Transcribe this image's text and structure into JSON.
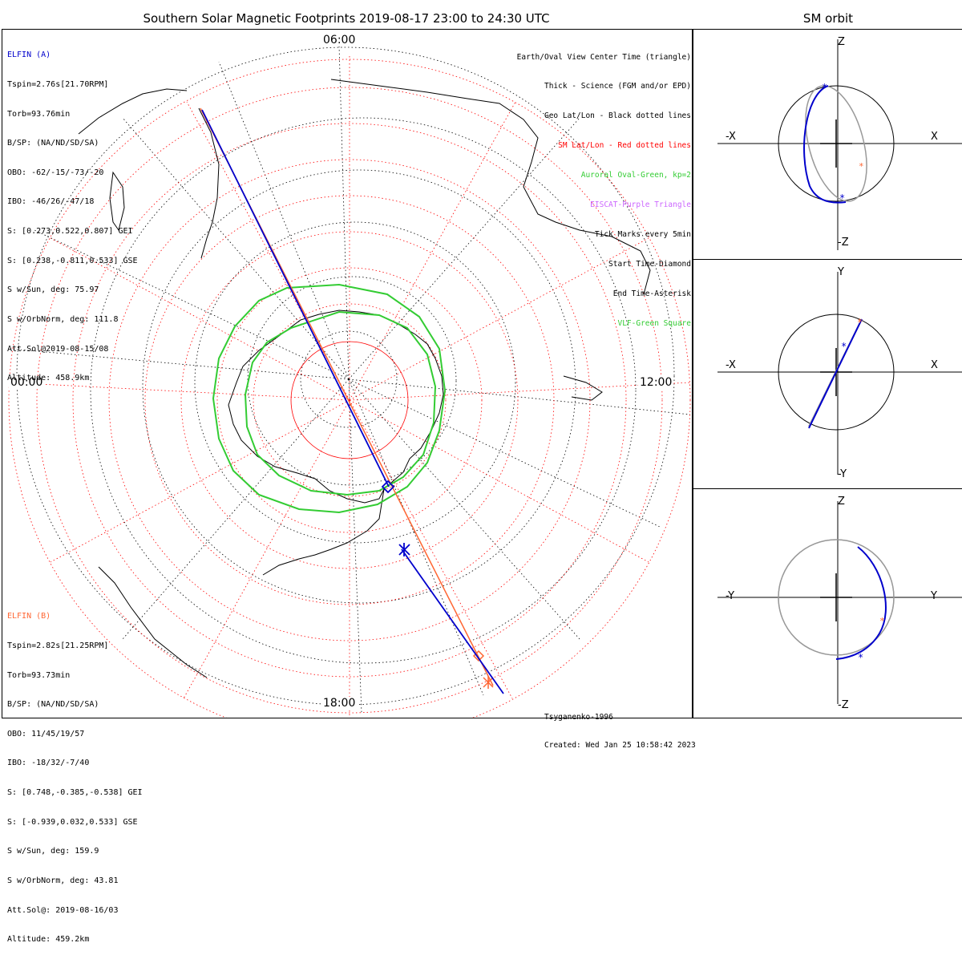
{
  "title": "Southern Solar Magnetic Footprints 2019-08-17 23:00 to 24:30 UTC",
  "orbit_title": "SM orbit",
  "mlt_labels": {
    "top": "06:00",
    "left": "00:00",
    "right": "12:00",
    "bottom": "18:00"
  },
  "elfin_a": {
    "name": "ELFIN (A)",
    "color": "#0000cc",
    "lines": [
      "Tspin=2.76s[21.70RPM]",
      "Torb=93.76min",
      "B/SP: (NA/ND/SD/SA)",
      "OBO: -62/-15/-73/-20",
      "IBO: -46/26/-47/18",
      "S: [0.273,0.522,0.807] GEI",
      "S: [0.238,-0.811,0.533] GSE",
      "S w/Sun, deg: 75.97",
      "S w/OrbNorm, deg: 111.8",
      "Att.Sol@2019-08-15/08",
      "Altitude: 458.9km"
    ]
  },
  "elfin_b": {
    "name": "ELFIN (B)",
    "color": "#ff6633",
    "lines": [
      "Tspin=2.82s[21.25RPM]",
      "Torb=93.73min",
      "B/SP: (NA/ND/SD/SA)",
      "OBO: 11/45/19/57",
      "IBO: -18/32/-7/40",
      "S: [0.748,-0.385,-0.538] GEI",
      "S: [-0.939,0.032,0.533] GSE",
      "S w/Sun, deg: 159.9",
      "S w/OrbNorm, deg: 43.81",
      "Att.Sol@: 2019-08-16/03",
      "Altitude: 459.2km"
    ]
  },
  "legend": [
    {
      "text": "Earth/Oval View Center Time (triangle)",
      "color": "#000000"
    },
    {
      "text": "Thick - Science (FGM and/or EPD)",
      "color": "#000000"
    },
    {
      "text": "Geo Lat/Lon - Black dotted lines",
      "color": "#000000"
    },
    {
      "text": "SM Lat/Lon - Red dotted lines",
      "color": "#ff0000"
    },
    {
      "text": "Auroral Oval-Green, kp=2",
      "color": "#33cc33"
    },
    {
      "text": "EISCAT-Purple Triangle",
      "color": "#cc66ff"
    },
    {
      "text": "Tick Marks every 5min",
      "color": "#000000"
    },
    {
      "text": "Start Time-Diamond",
      "color": "#000000"
    },
    {
      "text": "End Time-Asterisk",
      "color": "#000000"
    },
    {
      "text": "VLF-Green Square",
      "color": "#33cc33"
    }
  ],
  "credits": [
    "Tsyganenko-1996",
    "Created: Wed Jan 25 10:58:42 2023"
  ],
  "orbit_panels": [
    {
      "top": "Z",
      "bottom": "-Z",
      "left": "-X",
      "right": "X"
    },
    {
      "top": "Y",
      "bottom": "-Y",
      "left": "-X",
      "right": "X"
    },
    {
      "top": "Z",
      "bottom": "-Z",
      "left": "-Y",
      "right": "Y"
    }
  ],
  "colors": {
    "trace_a": "#0000cc",
    "trace_b": "#ff6633",
    "oval": "#33cc33",
    "sm_grid": "#ff0000",
    "geo_grid": "#000000"
  }
}
